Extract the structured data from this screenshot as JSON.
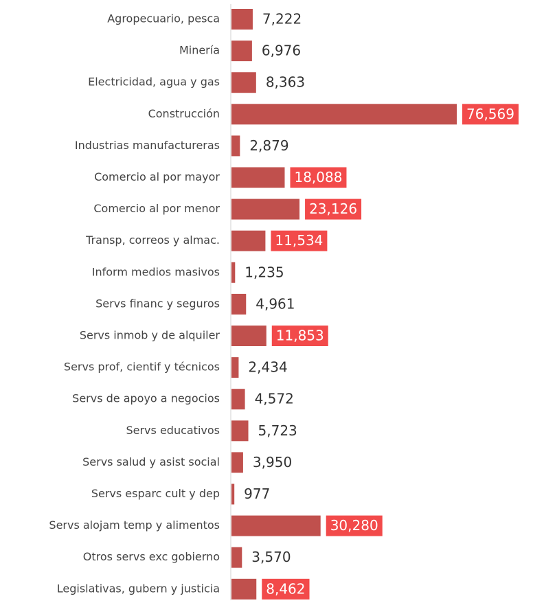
{
  "chart_data": {
    "type": "bar",
    "orientation": "horizontal",
    "categories": [
      "Agropecuario, pesca",
      "Minería",
      "Electricidad, agua y  gas",
      "Construcción",
      "Industrias manufactureras",
      "Comercio al por mayor",
      "Comercio al por menor",
      "Transp, correos y almac.",
      "Inform medios masivos",
      "Servs financ y seguros",
      "Servs inmob y de alquiler ",
      "Servs prof, cientif y técnicos",
      "Servs de apoyo a negocios ",
      "Servs educativos",
      "Servs salud y asist social",
      "Servs esparc cult y dep",
      "Servs alojam temp y alimentos",
      "Otros servs exc gobierno",
      "Legislativas, gubern y justicia"
    ],
    "values": [
      7222,
      6976,
      8363,
      76569,
      2879,
      18088,
      23126,
      11534,
      1235,
      4961,
      11853,
      2434,
      4572,
      5723,
      3950,
      977,
      30280,
      3570,
      8462
    ],
    "value_labels": [
      "7,222",
      "6,976",
      "8,363",
      "76,569",
      "2,879",
      "18,088",
      "23,126",
      "11,534",
      "1,235",
      "4,961",
      "11,853",
      "2,434",
      "4,572",
      "5,723",
      "3,950",
      "977",
      "30,280",
      "3,570",
      "8,462"
    ],
    "highlight": [
      false,
      false,
      false,
      true,
      false,
      true,
      true,
      true,
      false,
      false,
      true,
      false,
      false,
      false,
      false,
      false,
      true,
      false,
      true
    ],
    "color": "#c0504d",
    "highlight_color": "#f24a4a",
    "xlim": [
      0,
      76569
    ]
  }
}
